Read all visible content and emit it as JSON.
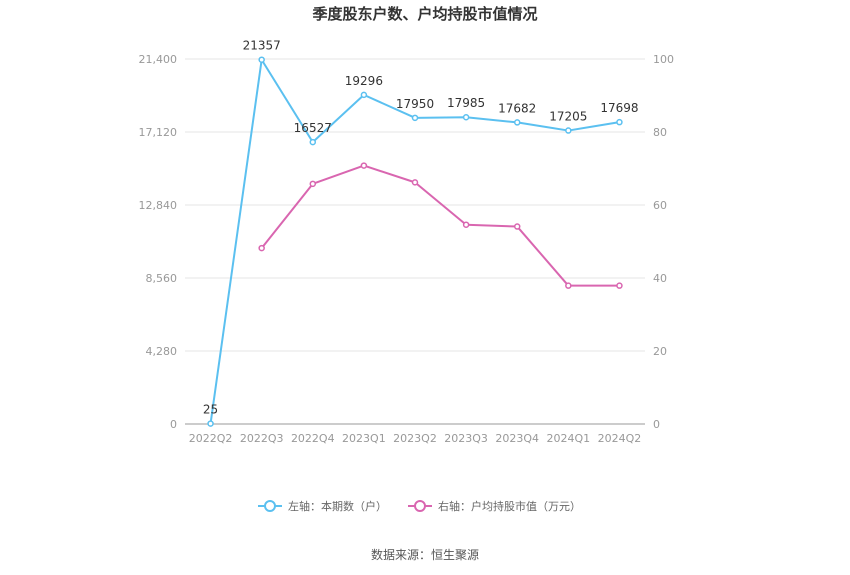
{
  "chart_data": {
    "type": "line",
    "title": "季度股东户数、户均持股市值情况",
    "categories": [
      "2022Q2",
      "2022Q3",
      "2022Q4",
      "2023Q1",
      "2023Q2",
      "2023Q3",
      "2023Q4",
      "2024Q1",
      "2024Q2"
    ],
    "left_axis": {
      "ticks": [
        "0",
        "4,280",
        "8,560",
        "12,840",
        "17,120",
        "21,400"
      ],
      "ylim": [
        0,
        21400
      ]
    },
    "right_axis": {
      "ticks": [
        "0",
        "20",
        "40",
        "60",
        "80",
        "100"
      ],
      "ylim": [
        0,
        100
      ]
    },
    "series": [
      {
        "name": "左轴：本期数（户）",
        "axis": "left",
        "color": "#5bc0f0",
        "values": [
          25,
          21357,
          16527,
          19296,
          17950,
          17985,
          17682,
          17205,
          17698
        ],
        "labels": [
          "25",
          "21357",
          "16527",
          "19296",
          "17950",
          "17985",
          "17682",
          "17205",
          "17698"
        ]
      },
      {
        "name": "右轴：户均持股市值（万元）",
        "axis": "right",
        "color": "#d966b0",
        "values": [
          null,
          48.2,
          65.8,
          70.8,
          66.2,
          54.6,
          54.1,
          37.9,
          37.9
        ]
      }
    ],
    "legend_position": "bottom",
    "grid": true
  },
  "source_text": "数据来源：恒生聚源"
}
